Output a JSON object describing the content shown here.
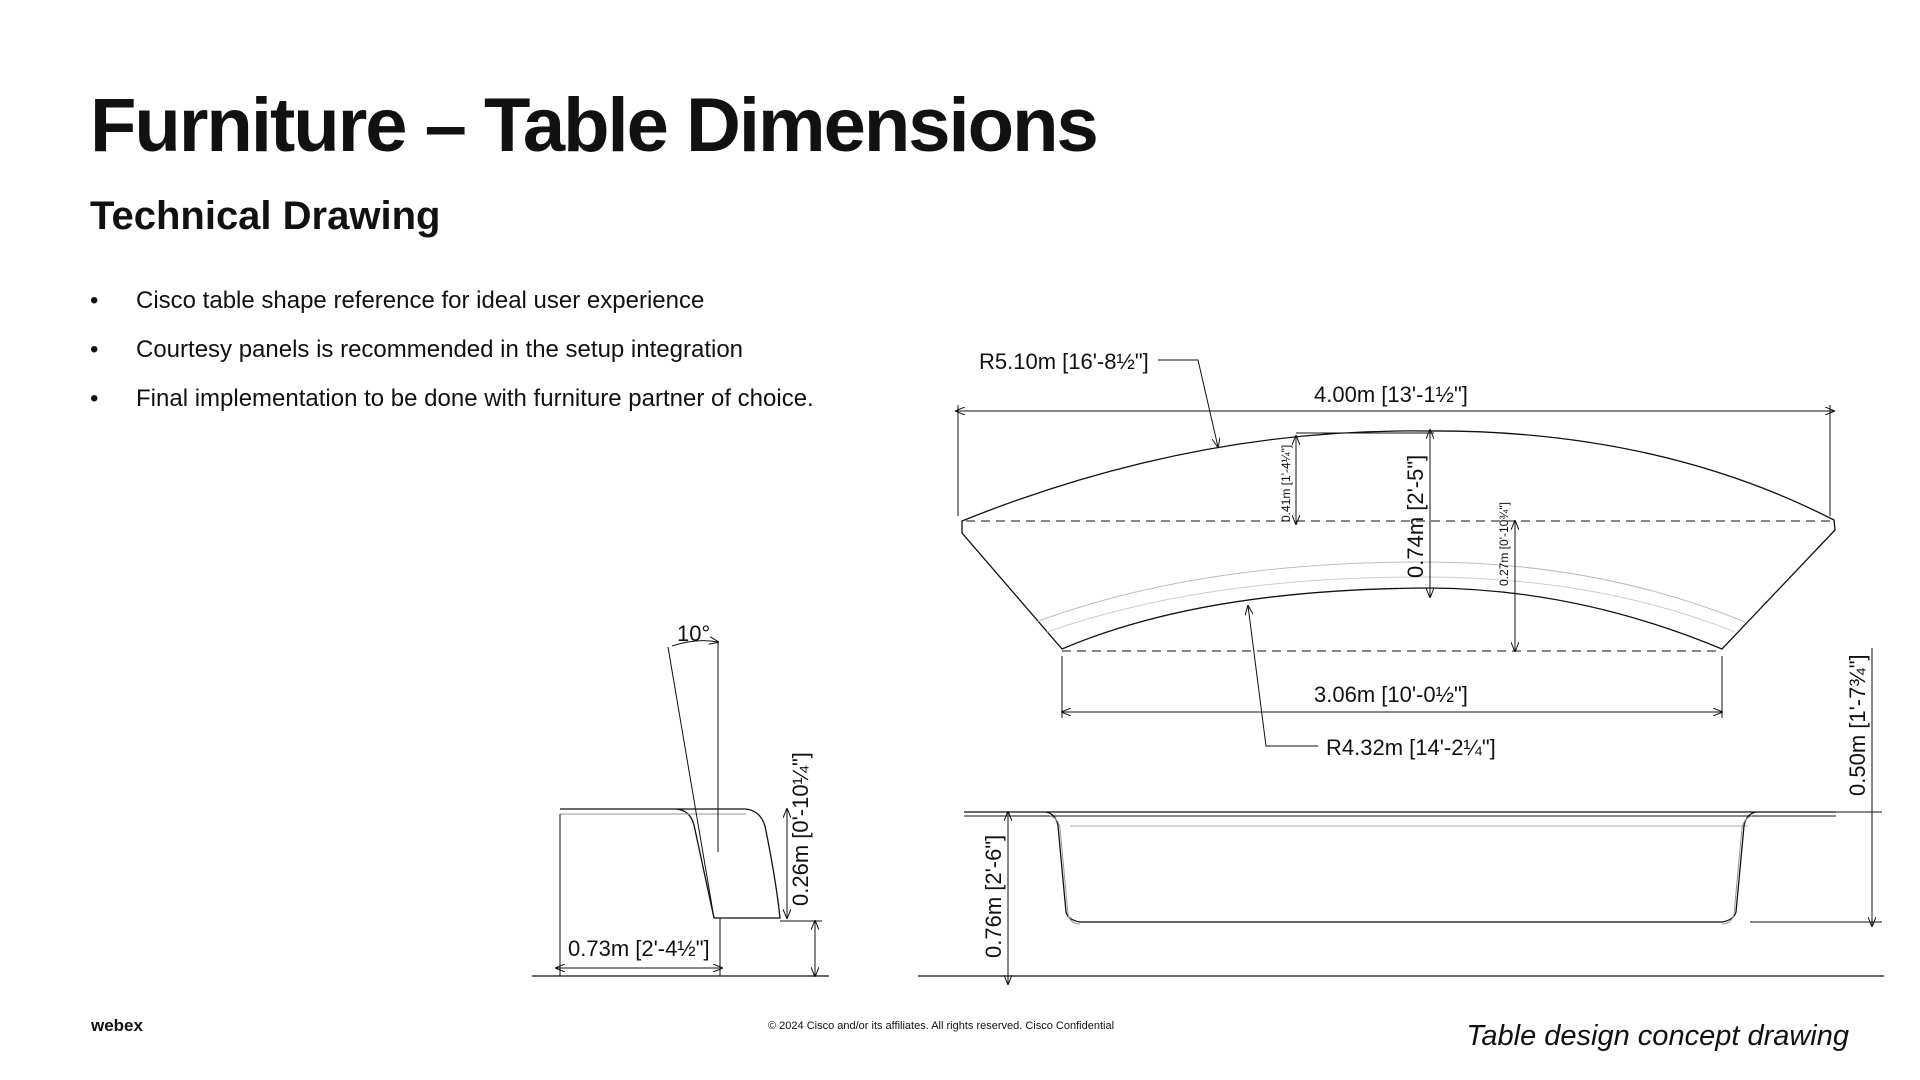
{
  "title": "Furniture – Table Dimensions",
  "subtitle": "Technical Drawing",
  "bullets": [
    "Cisco table shape reference for ideal user experience",
    "Courtesy panels is recommended in the setup integration",
    "Final implementation to be done with furniture partner of choice."
  ],
  "drawing": {
    "plan": {
      "outer_radius": "R5.10m [16'-8½\"]",
      "overall_width": "4.00m [13'-1½\"]",
      "front_depth": "0.41m [1'-4¼\"]",
      "total_depth": "0.74m [2'-5\"]",
      "side_depth": "0.27m [0'-10¾\"]",
      "rear_width": "3.06m [10'-0½\"]",
      "inner_radius": "R4.32m [14'-2¼\"]"
    },
    "section": {
      "angle": "10°",
      "panel_height": "0.26m [0'-10¼\"]",
      "depth": "0.73m [2'-4½\"]"
    },
    "elevation": {
      "height": "0.76m [2'-6\"]",
      "panel_depth": "0.50m [1'-7¾\"]"
    }
  },
  "footer": {
    "logo": "webex",
    "copyright": "© 2024 Cisco and/or its affiliates. All rights reserved. Cisco Confidential",
    "caption": "Table design concept drawing"
  }
}
